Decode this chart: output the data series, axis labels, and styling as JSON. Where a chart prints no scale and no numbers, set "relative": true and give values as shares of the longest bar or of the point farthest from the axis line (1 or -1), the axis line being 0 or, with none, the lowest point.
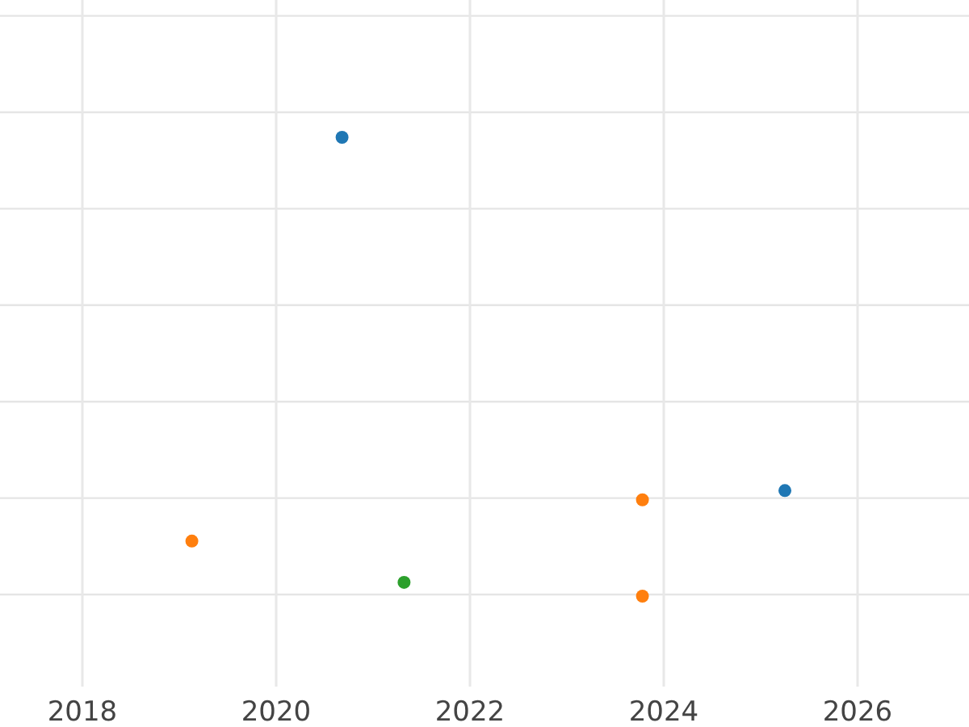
{
  "chart_data": {
    "type": "scatter",
    "relative": true,
    "xlim": [
      2017.15,
      2027.15
    ],
    "xticks": [
      2018,
      2020,
      2022,
      2024,
      2026
    ],
    "grid": true,
    "marker": "circle",
    "tick_labels": "x",
    "series": [
      {
        "color": "#1f77b4",
        "x": [
          2020.68,
          2025.25
        ],
        "values": [
          1,
          0.23
        ]
      },
      {
        "color": "#ff7f0e",
        "x": [
          2019.13,
          2023.78,
          2023.78
        ],
        "values": [
          0.12,
          0.21,
          0
        ]
      },
      {
        "color": "#2ca02c",
        "x": [
          2021.32
        ],
        "values": [
          0.03
        ]
      }
    ]
  }
}
